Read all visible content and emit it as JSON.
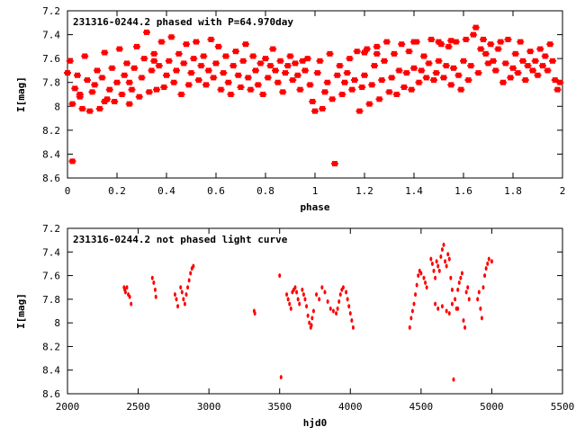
{
  "chart_data": [
    {
      "type": "scatter",
      "title": "231316-0244.2 phased with P=64.970day",
      "xlabel": "phase",
      "ylabel": "I[mag]",
      "xlim": [
        0,
        2
      ],
      "ylim": [
        7.2,
        8.6
      ],
      "y_inverted": true,
      "xticks": [
        "0",
        "0.2",
        "0.4",
        "0.6",
        "0.8",
        "1",
        "1.2",
        "1.4",
        "1.6",
        "1.8",
        "2"
      ],
      "yticks": [
        "7.2",
        "7.4",
        "7.6",
        "7.8",
        "8",
        "8.2",
        "8.4",
        "8.6"
      ],
      "marker_color": "#ff0000",
      "points": [
        [
          0.0,
          7.72
        ],
        [
          0.01,
          7.62
        ],
        [
          0.02,
          8.46
        ],
        [
          0.02,
          7.98
        ],
        [
          0.03,
          7.85
        ],
        [
          0.04,
          7.74
        ],
        [
          0.05,
          7.92
        ],
        [
          0.06,
          8.02
        ],
        [
          0.07,
          7.58
        ],
        [
          0.08,
          7.78
        ],
        [
          0.09,
          8.04
        ],
        [
          0.1,
          7.88
        ],
        [
          0.11,
          7.82
        ],
        [
          0.12,
          7.7
        ],
        [
          0.13,
          8.02
        ],
        [
          0.14,
          7.76
        ],
        [
          0.15,
          7.55
        ],
        [
          0.16,
          7.94
        ],
        [
          0.17,
          7.86
        ],
        [
          0.18,
          7.68
        ],
        [
          0.19,
          7.96
        ],
        [
          0.2,
          7.8
        ],
        [
          0.21,
          7.52
        ],
        [
          0.22,
          7.9
        ],
        [
          0.23,
          7.74
        ],
        [
          0.24,
          7.64
        ],
        [
          0.25,
          7.98
        ],
        [
          0.26,
          7.86
        ],
        [
          0.27,
          7.68
        ],
        [
          0.28,
          7.5
        ],
        [
          0.29,
          7.92
        ],
        [
          0.3,
          7.76
        ],
        [
          0.31,
          7.6
        ],
        [
          0.32,
          7.38
        ],
        [
          0.33,
          7.88
        ],
        [
          0.34,
          7.7
        ],
        [
          0.35,
          7.56
        ],
        [
          0.36,
          7.86
        ],
        [
          0.37,
          7.66
        ],
        [
          0.38,
          7.46
        ],
        [
          0.39,
          7.84
        ],
        [
          0.4,
          7.74
        ],
        [
          0.41,
          7.62
        ],
        [
          0.42,
          7.42
        ],
        [
          0.43,
          7.8
        ],
        [
          0.44,
          7.7
        ],
        [
          0.45,
          7.56
        ],
        [
          0.46,
          7.9
        ],
        [
          0.47,
          7.64
        ],
        [
          0.48,
          7.48
        ],
        [
          0.49,
          7.82
        ],
        [
          0.5,
          7.72
        ],
        [
          0.51,
          7.6
        ],
        [
          0.52,
          7.46
        ],
        [
          0.53,
          7.78
        ],
        [
          0.54,
          7.66
        ],
        [
          0.55,
          7.58
        ],
        [
          0.56,
          7.82
        ],
        [
          0.57,
          7.7
        ],
        [
          0.58,
          7.44
        ],
        [
          0.59,
          7.76
        ],
        [
          0.6,
          7.64
        ],
        [
          0.61,
          7.5
        ],
        [
          0.62,
          7.86
        ],
        [
          0.63,
          7.72
        ],
        [
          0.64,
          7.58
        ],
        [
          0.65,
          7.8
        ],
        [
          0.66,
          7.9
        ],
        [
          0.67,
          7.66
        ],
        [
          0.68,
          7.54
        ],
        [
          0.69,
          7.74
        ],
        [
          0.7,
          7.84
        ],
        [
          0.71,
          7.62
        ],
        [
          0.72,
          7.48
        ],
        [
          0.73,
          7.76
        ],
        [
          0.74,
          7.86
        ],
        [
          0.75,
          7.58
        ],
        [
          0.76,
          7.7
        ],
        [
          0.77,
          7.82
        ],
        [
          0.78,
          7.64
        ],
        [
          0.79,
          7.9
        ],
        [
          0.8,
          7.6
        ],
        [
          0.81,
          7.76
        ],
        [
          0.82,
          7.66
        ],
        [
          0.83,
          7.52
        ],
        [
          0.84,
          7.7
        ],
        [
          0.85,
          7.8
        ],
        [
          0.86,
          7.62
        ],
        [
          0.87,
          7.88
        ],
        [
          0.88,
          7.72
        ],
        [
          0.89,
          7.66
        ],
        [
          0.9,
          7.58
        ],
        [
          0.91,
          7.78
        ],
        [
          0.92,
          7.64
        ],
        [
          0.93,
          7.74
        ],
        [
          0.94,
          7.86
        ],
        [
          0.95,
          7.62
        ],
        [
          0.96,
          7.7
        ],
        [
          0.97,
          7.6
        ],
        [
          0.98,
          7.82
        ],
        [
          0.99,
          7.96
        ],
        [
          1.0,
          8.04
        ],
        [
          1.01,
          7.72
        ],
        [
          1.02,
          7.62
        ],
        [
          1.03,
          8.02
        ],
        [
          1.04,
          7.88
        ],
        [
          1.05,
          7.8
        ],
        [
          1.06,
          7.56
        ],
        [
          1.07,
          7.94
        ],
        [
          1.08,
          8.48
        ],
        [
          1.09,
          7.74
        ],
        [
          1.1,
          7.66
        ],
        [
          1.11,
          7.9
        ],
        [
          1.12,
          7.8
        ],
        [
          1.13,
          7.72
        ],
        [
          1.14,
          7.6
        ],
        [
          1.15,
          7.86
        ],
        [
          1.16,
          7.78
        ],
        [
          1.17,
          7.54
        ],
        [
          1.18,
          8.04
        ],
        [
          1.19,
          7.84
        ],
        [
          1.2,
          7.74
        ],
        [
          1.21,
          7.52
        ],
        [
          1.22,
          7.98
        ],
        [
          1.23,
          7.82
        ],
        [
          1.24,
          7.66
        ],
        [
          1.25,
          7.5
        ],
        [
          1.26,
          7.94
        ],
        [
          1.27,
          7.78
        ],
        [
          1.28,
          7.62
        ],
        [
          1.29,
          7.46
        ],
        [
          1.3,
          7.88
        ],
        [
          1.31,
          7.76
        ],
        [
          1.32,
          7.56
        ],
        [
          1.33,
          7.9
        ],
        [
          1.34,
          7.7
        ],
        [
          1.35,
          7.48
        ],
        [
          1.36,
          7.84
        ],
        [
          1.37,
          7.72
        ],
        [
          1.38,
          7.54
        ],
        [
          1.39,
          7.86
        ],
        [
          1.4,
          7.68
        ],
        [
          1.41,
          7.46
        ],
        [
          1.42,
          7.8
        ],
        [
          1.43,
          7.7
        ],
        [
          1.44,
          7.58
        ],
        [
          1.45,
          7.76
        ],
        [
          1.46,
          7.64
        ],
        [
          1.47,
          7.44
        ],
        [
          1.48,
          7.78
        ],
        [
          1.49,
          7.72
        ],
        [
          1.5,
          7.62
        ],
        [
          1.51,
          7.48
        ],
        [
          1.52,
          7.76
        ],
        [
          1.53,
          7.66
        ],
        [
          1.54,
          7.5
        ],
        [
          1.55,
          7.82
        ],
        [
          1.56,
          7.68
        ],
        [
          1.57,
          7.46
        ],
        [
          1.58,
          7.74
        ],
        [
          1.59,
          7.86
        ],
        [
          1.6,
          7.62
        ],
        [
          1.61,
          7.44
        ],
        [
          1.62,
          7.78
        ],
        [
          1.63,
          7.66
        ],
        [
          1.64,
          7.4
        ],
        [
          1.65,
          7.34
        ],
        [
          1.66,
          7.72
        ],
        [
          1.67,
          7.52
        ],
        [
          1.68,
          7.44
        ],
        [
          1.69,
          7.56
        ],
        [
          1.7,
          7.64
        ],
        [
          1.71,
          7.48
        ],
        [
          1.72,
          7.62
        ],
        [
          1.73,
          7.7
        ],
        [
          1.74,
          7.52
        ],
        [
          1.75,
          7.46
        ],
        [
          1.76,
          7.8
        ],
        [
          1.77,
          7.64
        ],
        [
          1.78,
          7.44
        ],
        [
          1.79,
          7.76
        ],
        [
          1.8,
          7.68
        ],
        [
          1.81,
          7.56
        ],
        [
          1.82,
          7.72
        ],
        [
          1.83,
          7.46
        ],
        [
          1.84,
          7.62
        ],
        [
          1.85,
          7.78
        ],
        [
          1.86,
          7.66
        ],
        [
          1.87,
          7.54
        ],
        [
          1.88,
          7.7
        ],
        [
          1.89,
          7.62
        ],
        [
          1.9,
          7.74
        ],
        [
          1.91,
          7.52
        ],
        [
          1.92,
          7.66
        ],
        [
          1.93,
          7.58
        ],
        [
          1.94,
          7.7
        ],
        [
          1.95,
          7.48
        ],
        [
          1.96,
          7.62
        ],
        [
          1.97,
          7.78
        ],
        [
          1.98,
          7.86
        ],
        [
          1.99,
          7.8
        ],
        [
          1.4,
          7.46
        ],
        [
          1.5,
          7.46
        ],
        [
          1.55,
          7.45
        ],
        [
          1.2,
          7.55
        ],
        [
          1.25,
          7.56
        ],
        [
          0.05,
          7.9
        ],
        [
          0.15,
          7.96
        ],
        [
          0.25,
          7.8
        ],
        [
          0.35,
          7.62
        ]
      ]
    },
    {
      "type": "scatter",
      "title": "231316-0244.2 not phased light curve",
      "xlabel": "hjd0",
      "ylabel": "I[mag]",
      "xlim": [
        2000,
        5500
      ],
      "ylim": [
        7.2,
        8.6
      ],
      "y_inverted": true,
      "xticks": [
        "2000",
        "2500",
        "3000",
        "3500",
        "4000",
        "4500",
        "5000",
        "5500"
      ],
      "yticks": [
        "7.2",
        "7.4",
        "7.6",
        "7.8",
        "8",
        "8.2",
        "8.4",
        "8.6"
      ],
      "marker_color": "#ff0000",
      "points": [
        [
          2400,
          7.7
        ],
        [
          2405,
          7.72
        ],
        [
          2410,
          7.74
        ],
        [
          2420,
          7.7
        ],
        [
          2430,
          7.76
        ],
        [
          2440,
          7.78
        ],
        [
          2450,
          7.84
        ],
        [
          2600,
          7.62
        ],
        [
          2610,
          7.66
        ],
        [
          2620,
          7.72
        ],
        [
          2625,
          7.78
        ],
        [
          2760,
          7.76
        ],
        [
          2770,
          7.8
        ],
        [
          2780,
          7.86
        ],
        [
          2800,
          7.7
        ],
        [
          2810,
          7.74
        ],
        [
          2820,
          7.8
        ],
        [
          2830,
          7.84
        ],
        [
          2840,
          7.76
        ],
        [
          2850,
          7.7
        ],
        [
          2860,
          7.64
        ],
        [
          2870,
          7.58
        ],
        [
          2880,
          7.54
        ],
        [
          2890,
          7.52
        ],
        [
          3320,
          7.9
        ],
        [
          3325,
          7.92
        ],
        [
          3500,
          7.6
        ],
        [
          3510,
          8.46
        ],
        [
          3550,
          7.76
        ],
        [
          3560,
          7.8
        ],
        [
          3570,
          7.84
        ],
        [
          3580,
          7.88
        ],
        [
          3590,
          7.74
        ],
        [
          3600,
          7.72
        ],
        [
          3610,
          7.7
        ],
        [
          3620,
          7.74
        ],
        [
          3630,
          7.8
        ],
        [
          3640,
          7.84
        ],
        [
          3660,
          7.72
        ],
        [
          3670,
          7.76
        ],
        [
          3680,
          7.8
        ],
        [
          3690,
          7.86
        ],
        [
          3700,
          7.94
        ],
        [
          3710,
          8.0
        ],
        [
          3720,
          8.04
        ],
        [
          3725,
          8.02
        ],
        [
          3730,
          7.96
        ],
        [
          3740,
          7.9
        ],
        [
          3760,
          7.76
        ],
        [
          3780,
          7.8
        ],
        [
          3800,
          7.7
        ],
        [
          3820,
          7.74
        ],
        [
          3840,
          7.82
        ],
        [
          3860,
          7.88
        ],
        [
          3880,
          7.9
        ],
        [
          3900,
          7.92
        ],
        [
          3910,
          7.88
        ],
        [
          3920,
          7.82
        ],
        [
          3930,
          7.76
        ],
        [
          3940,
          7.72
        ],
        [
          3950,
          7.7
        ],
        [
          3970,
          7.74
        ],
        [
          3980,
          7.8
        ],
        [
          3990,
          7.86
        ],
        [
          4000,
          7.92
        ],
        [
          4010,
          7.98
        ],
        [
          4020,
          8.04
        ],
        [
          4420,
          8.04
        ],
        [
          4430,
          7.96
        ],
        [
          4440,
          7.9
        ],
        [
          4450,
          7.84
        ],
        [
          4460,
          7.76
        ],
        [
          4470,
          7.68
        ],
        [
          4480,
          7.6
        ],
        [
          4490,
          7.56
        ],
        [
          4500,
          7.58
        ],
        [
          4520,
          7.62
        ],
        [
          4530,
          7.66
        ],
        [
          4540,
          7.7
        ],
        [
          4570,
          7.46
        ],
        [
          4580,
          7.5
        ],
        [
          4590,
          7.56
        ],
        [
          4600,
          7.62
        ],
        [
          4610,
          7.48
        ],
        [
          4620,
          7.52
        ],
        [
          4630,
          7.56
        ],
        [
          4640,
          7.44
        ],
        [
          4650,
          7.38
        ],
        [
          4660,
          7.34
        ],
        [
          4670,
          7.48
        ],
        [
          4680,
          7.52
        ],
        [
          4690,
          7.42
        ],
        [
          4700,
          7.46
        ],
        [
          4710,
          7.62
        ],
        [
          4720,
          7.72
        ],
        [
          4730,
          8.48
        ],
        [
          4740,
          7.8
        ],
        [
          4750,
          7.88
        ],
        [
          4760,
          7.72
        ],
        [
          4770,
          7.66
        ],
        [
          4780,
          7.62
        ],
        [
          4790,
          7.58
        ],
        [
          4800,
          7.98
        ],
        [
          4810,
          8.04
        ],
        [
          4820,
          7.74
        ],
        [
          4830,
          7.7
        ],
        [
          4840,
          7.8
        ],
        [
          4600,
          7.84
        ],
        [
          4620,
          7.88
        ],
        [
          4650,
          7.86
        ],
        [
          4680,
          7.9
        ],
        [
          4700,
          7.92
        ],
        [
          4720,
          7.84
        ],
        [
          4760,
          7.88
        ],
        [
          4900,
          7.8
        ],
        [
          4910,
          7.74
        ],
        [
          4920,
          7.88
        ],
        [
          4930,
          7.96
        ],
        [
          4940,
          7.7
        ],
        [
          4950,
          7.6
        ],
        [
          4960,
          7.54
        ],
        [
          4970,
          7.5
        ],
        [
          4980,
          7.46
        ],
        [
          5000,
          7.48
        ]
      ]
    }
  ]
}
